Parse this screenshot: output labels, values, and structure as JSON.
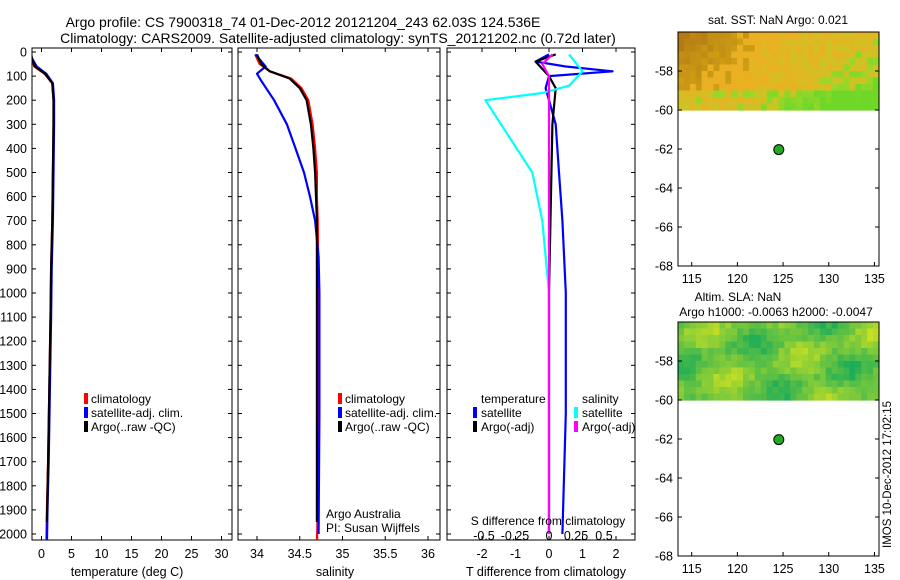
{
  "header": {
    "title_line1": "Argo profile: CS 7900318_74 01-Dec-2012 20121204_243 62.03S 124.536E",
    "title_line2": "Climatology: CARS2009. Satellite-adjusted climatology: synTS_20121202.nc (0.72d later)"
  },
  "colors": {
    "climatology": "#ff0000",
    "satellite": "#0000ff",
    "argo": "#000000",
    "satellite_s_diff": "#00ffff",
    "argo_s_diff": "#ff00ff",
    "map_marker": "#22aa22"
  },
  "side_stamp": "IMOS 10-Dec-2012 17:02:15",
  "chart_data": [
    {
      "id": "temperature",
      "type": "line",
      "xlabel": "temperature (deg C)",
      "ylabel": "",
      "xlim": [
        -2,
        31
      ],
      "ylim": [
        2100,
        0
      ],
      "x_ticks": [
        0,
        5,
        10,
        15,
        20,
        25,
        30
      ],
      "x_tick_labels": [
        "0",
        "5",
        "10",
        "15",
        "20",
        "25",
        "30"
      ],
      "y_ticks": [
        0,
        100,
        200,
        300,
        400,
        500,
        600,
        700,
        800,
        900,
        1000,
        1100,
        1200,
        1300,
        1400,
        1500,
        1600,
        1700,
        1800,
        1900,
        2000
      ],
      "y_tick_labels": [
        "0",
        "100",
        "200",
        "300",
        "400",
        "500",
        "600",
        "700",
        "800",
        "900",
        "1000",
        "1100",
        "1200",
        "1300",
        "1400",
        "1500",
        "1600",
        "1700",
        "1800",
        "1900",
        "2000"
      ],
      "legend": [
        "climatology",
        "satellite-adj. clim.",
        "Argo(..raw -QC)"
      ],
      "series": [
        {
          "name": "climatology",
          "color": "#ff0000",
          "x": [
            -1.8,
            -1.6,
            -1.2,
            0.5,
            1.8,
            2.0,
            2.0,
            1.9,
            1.8,
            1.6,
            1.5,
            1.3,
            1.1,
            0.9,
            0.8
          ],
          "y": [
            10,
            30,
            60,
            90,
            130,
            200,
            300,
            500,
            700,
            900,
            1100,
            1400,
            1700,
            1900,
            2050
          ]
        },
        {
          "name": "satellite-adj. clim.",
          "color": "#0000ff",
          "x": [
            -1.8,
            -1.5,
            -0.8,
            0.8,
            1.9,
            2.1,
            2.1,
            2.0,
            1.9,
            1.7,
            1.6,
            1.4,
            1.2,
            1.0,
            0.9
          ],
          "y": [
            10,
            30,
            60,
            90,
            130,
            200,
            300,
            500,
            700,
            900,
            1100,
            1400,
            1700,
            1900,
            2050
          ]
        },
        {
          "name": "Argo(..raw -QC)",
          "color": "#000000",
          "x": [
            -1.7,
            -1.6,
            -1.1,
            0.6,
            1.8,
            2.0,
            2.0,
            1.9,
            1.8,
            1.6,
            1.5,
            1.3,
            1.1,
            0.9
          ],
          "y": [
            10,
            30,
            60,
            90,
            130,
            200,
            300,
            500,
            700,
            900,
            1100,
            1400,
            1700,
            1950
          ]
        }
      ]
    },
    {
      "id": "salinity",
      "type": "line",
      "xlabel": "salinity",
      "xlim": [
        33.85,
        36.1
      ],
      "ylim": [
        2100,
        0
      ],
      "x_ticks": [
        34,
        34.5,
        35,
        35.5,
        36
      ],
      "x_tick_labels": [
        "34",
        "34.5",
        "35",
        "35.5",
        "36"
      ],
      "legend": [
        "climatology",
        "satellite-adj. clim.",
        "Argo(..raw -QC)"
      ],
      "annotation_line1": "Argo Australia",
      "annotation_line2": "PI: Susan Wijffels",
      "series": [
        {
          "name": "climatology",
          "color": "#ff0000",
          "x": [
            33.98,
            34.03,
            34.15,
            34.4,
            34.52,
            34.6,
            34.65,
            34.68,
            34.7,
            34.7,
            34.71,
            34.72,
            34.72,
            34.71,
            34.7
          ],
          "y": [
            10,
            50,
            80,
            110,
            150,
            200,
            300,
            400,
            500,
            600,
            700,
            1000,
            1500,
            1900,
            2050
          ]
        },
        {
          "name": "satellite-adj. clim.",
          "color": "#0000ff",
          "x": [
            33.98,
            34.1,
            34.0,
            34.05,
            34.2,
            34.35,
            34.45,
            34.55,
            34.62,
            34.68,
            34.72,
            34.73,
            34.73,
            34.72
          ],
          "y": [
            10,
            60,
            90,
            120,
            200,
            300,
            400,
            500,
            600,
            700,
            850,
            1000,
            1500,
            2000
          ]
        },
        {
          "name": "Argo(..raw -QC)",
          "color": "#000000",
          "x": [
            34.0,
            34.05,
            34.15,
            34.38,
            34.5,
            34.58,
            34.63,
            34.66,
            34.68,
            34.69,
            34.7,
            34.7,
            34.7
          ],
          "y": [
            10,
            50,
            80,
            110,
            150,
            200,
            300,
            400,
            500,
            600,
            700,
            1000,
            1950
          ]
        }
      ]
    },
    {
      "id": "difference",
      "type": "line",
      "xlabel": "T difference from climatology",
      "xlabel_top": "S difference from climatology",
      "xlim": [
        -2.6,
        3.1
      ],
      "ylim": [
        2100,
        0
      ],
      "x_ticks": [
        -2,
        -1,
        0,
        1,
        2
      ],
      "x_tick_labels": [
        "-2",
        "-1",
        "0",
        "1",
        "2"
      ],
      "x2_tick_labels": [
        "-0.5",
        "-0.25",
        "0",
        "0.25",
        "0.5"
      ],
      "legend_temperature_header": "temperature",
      "legend_salinity_header": "salinity",
      "legend_temperature": [
        "satellite",
        "Argo(-adj)"
      ],
      "legend_salinity": [
        "satellite",
        "Argo(-adj)"
      ],
      "series": [
        {
          "name": "T satellite",
          "color": "#0000ff",
          "x": [
            0.0,
            -0.4,
            0.5,
            1.9,
            0.0,
            -0.1,
            0.0,
            0.2,
            0.3,
            0.4,
            0.5,
            0.5,
            0.4
          ],
          "y": [
            10,
            40,
            60,
            80,
            100,
            150,
            200,
            300,
            500,
            700,
            1000,
            1500,
            2000
          ]
        },
        {
          "name": "T Argo(-adj)",
          "color": "#000000",
          "x": [
            0.2,
            -0.4,
            -0.2,
            0.0,
            0.2,
            0.1,
            0.0,
            0.0
          ],
          "y": [
            10,
            40,
            70,
            100,
            150,
            300,
            1000,
            2000
          ]
        },
        {
          "name": "S satellite",
          "color": "#00ffff",
          "x": [
            0.6,
            1.0,
            0.6,
            -0.2,
            -1.9,
            -1.2,
            -0.5,
            -0.2,
            0.0,
            0.0
          ],
          "y": [
            10,
            80,
            140,
            170,
            200,
            350,
            500,
            700,
            1000,
            2000
          ]
        },
        {
          "name": "S Argo(-adj)",
          "color": "#ff00ff",
          "x": [
            0.1,
            -0.2,
            0.0,
            0.0,
            0.0,
            0.0
          ],
          "y": [
            10,
            50,
            100,
            200,
            1000,
            2000
          ]
        }
      ]
    },
    {
      "id": "map_sst",
      "type": "heatmap",
      "title": "sat. SST: NaN Argo: 0.021",
      "xlim": [
        113.5,
        135.5
      ],
      "ylim": [
        -68,
        -56
      ],
      "x_ticks": [
        115,
        120,
        125,
        130,
        135
      ],
      "x_tick_labels": [
        "115",
        "120",
        "125",
        "130",
        "135"
      ],
      "y_ticks": [
        -58,
        -60,
        -62,
        -64,
        -66,
        -68
      ],
      "y_tick_labels": [
        "-58",
        "-60",
        "-62",
        "-64",
        "-66",
        "-68"
      ],
      "data_rows_lat": [
        -56,
        -60
      ],
      "marker": {
        "lon": 124.536,
        "lat": -62.03
      }
    },
    {
      "id": "map_sla",
      "type": "heatmap",
      "title_line1": "Altim. SLA: NaN",
      "title_line2": "Argo h1000: -0.0063 h2000: -0.0047",
      "xlim": [
        113.5,
        135.5
      ],
      "ylim": [
        -68,
        -56
      ],
      "x_ticks": [
        115,
        120,
        125,
        130,
        135
      ],
      "x_tick_labels": [
        "115",
        "120",
        "125",
        "130",
        "135"
      ],
      "y_ticks": [
        -58,
        -60,
        -62,
        -64,
        -66,
        -68
      ],
      "y_tick_labels": [
        "-58",
        "-60",
        "-62",
        "-64",
        "-66",
        "-68"
      ],
      "data_rows_lat": [
        -56,
        -60
      ],
      "marker": {
        "lon": 124.536,
        "lat": -62.03
      }
    }
  ]
}
